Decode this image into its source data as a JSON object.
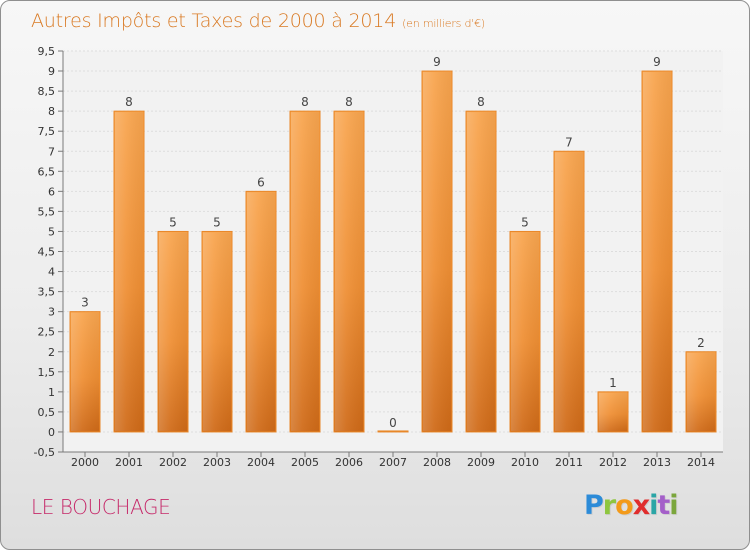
{
  "page": {
    "title": "Autres Impôts et Taxes de 2000 à 2014",
    "unit_note": "(en milliers d'€)",
    "location": "LE BOUCHAGE",
    "logo_text": "Proxiti"
  },
  "chart_data": {
    "type": "bar",
    "title": "Autres Impôts et Taxes de 2000 à 2014",
    "subtitle": "(en milliers d'€)",
    "xlabel": "",
    "ylabel": "",
    "categories": [
      "2000",
      "2001",
      "2002",
      "2003",
      "2004",
      "2005",
      "2006",
      "2007",
      "2008",
      "2009",
      "2010",
      "2011",
      "2012",
      "2013",
      "2014"
    ],
    "values": [
      3,
      8,
      5,
      5,
      6,
      8,
      8,
      0,
      9,
      8,
      5,
      7,
      1,
      9,
      2
    ],
    "data_labels": [
      "3",
      "8",
      "5",
      "5",
      "6",
      "8",
      "8",
      "0",
      "9",
      "8",
      "5",
      "7",
      "1",
      "9",
      "2"
    ],
    "y_ticks": [
      -0.5,
      0,
      0.5,
      1,
      1.5,
      2,
      2.5,
      3,
      3.5,
      4,
      4.5,
      5,
      5.5,
      6,
      6.5,
      7,
      7.5,
      8,
      8.5,
      9,
      9.5
    ],
    "y_tick_labels": [
      "-0,5",
      "0",
      "0,5",
      "1",
      "1,5",
      "2",
      "2,5",
      "3",
      "3,5",
      "4",
      "4,5",
      "5",
      "5,5",
      "6",
      "6,5",
      "7",
      "7,5",
      "8",
      "8,5",
      "9",
      "9,5"
    ],
    "ylim": [
      -0.5,
      9.5
    ],
    "grid": true,
    "legend": "none",
    "colors": {
      "bar_light": "#f7a24b",
      "bar_dark": "#d06b18",
      "bar_edge": "#e88728",
      "grid": "#dddddd",
      "axis": "#7a7a7a",
      "title": "#d97a24",
      "location": "#c62a6a"
    }
  }
}
